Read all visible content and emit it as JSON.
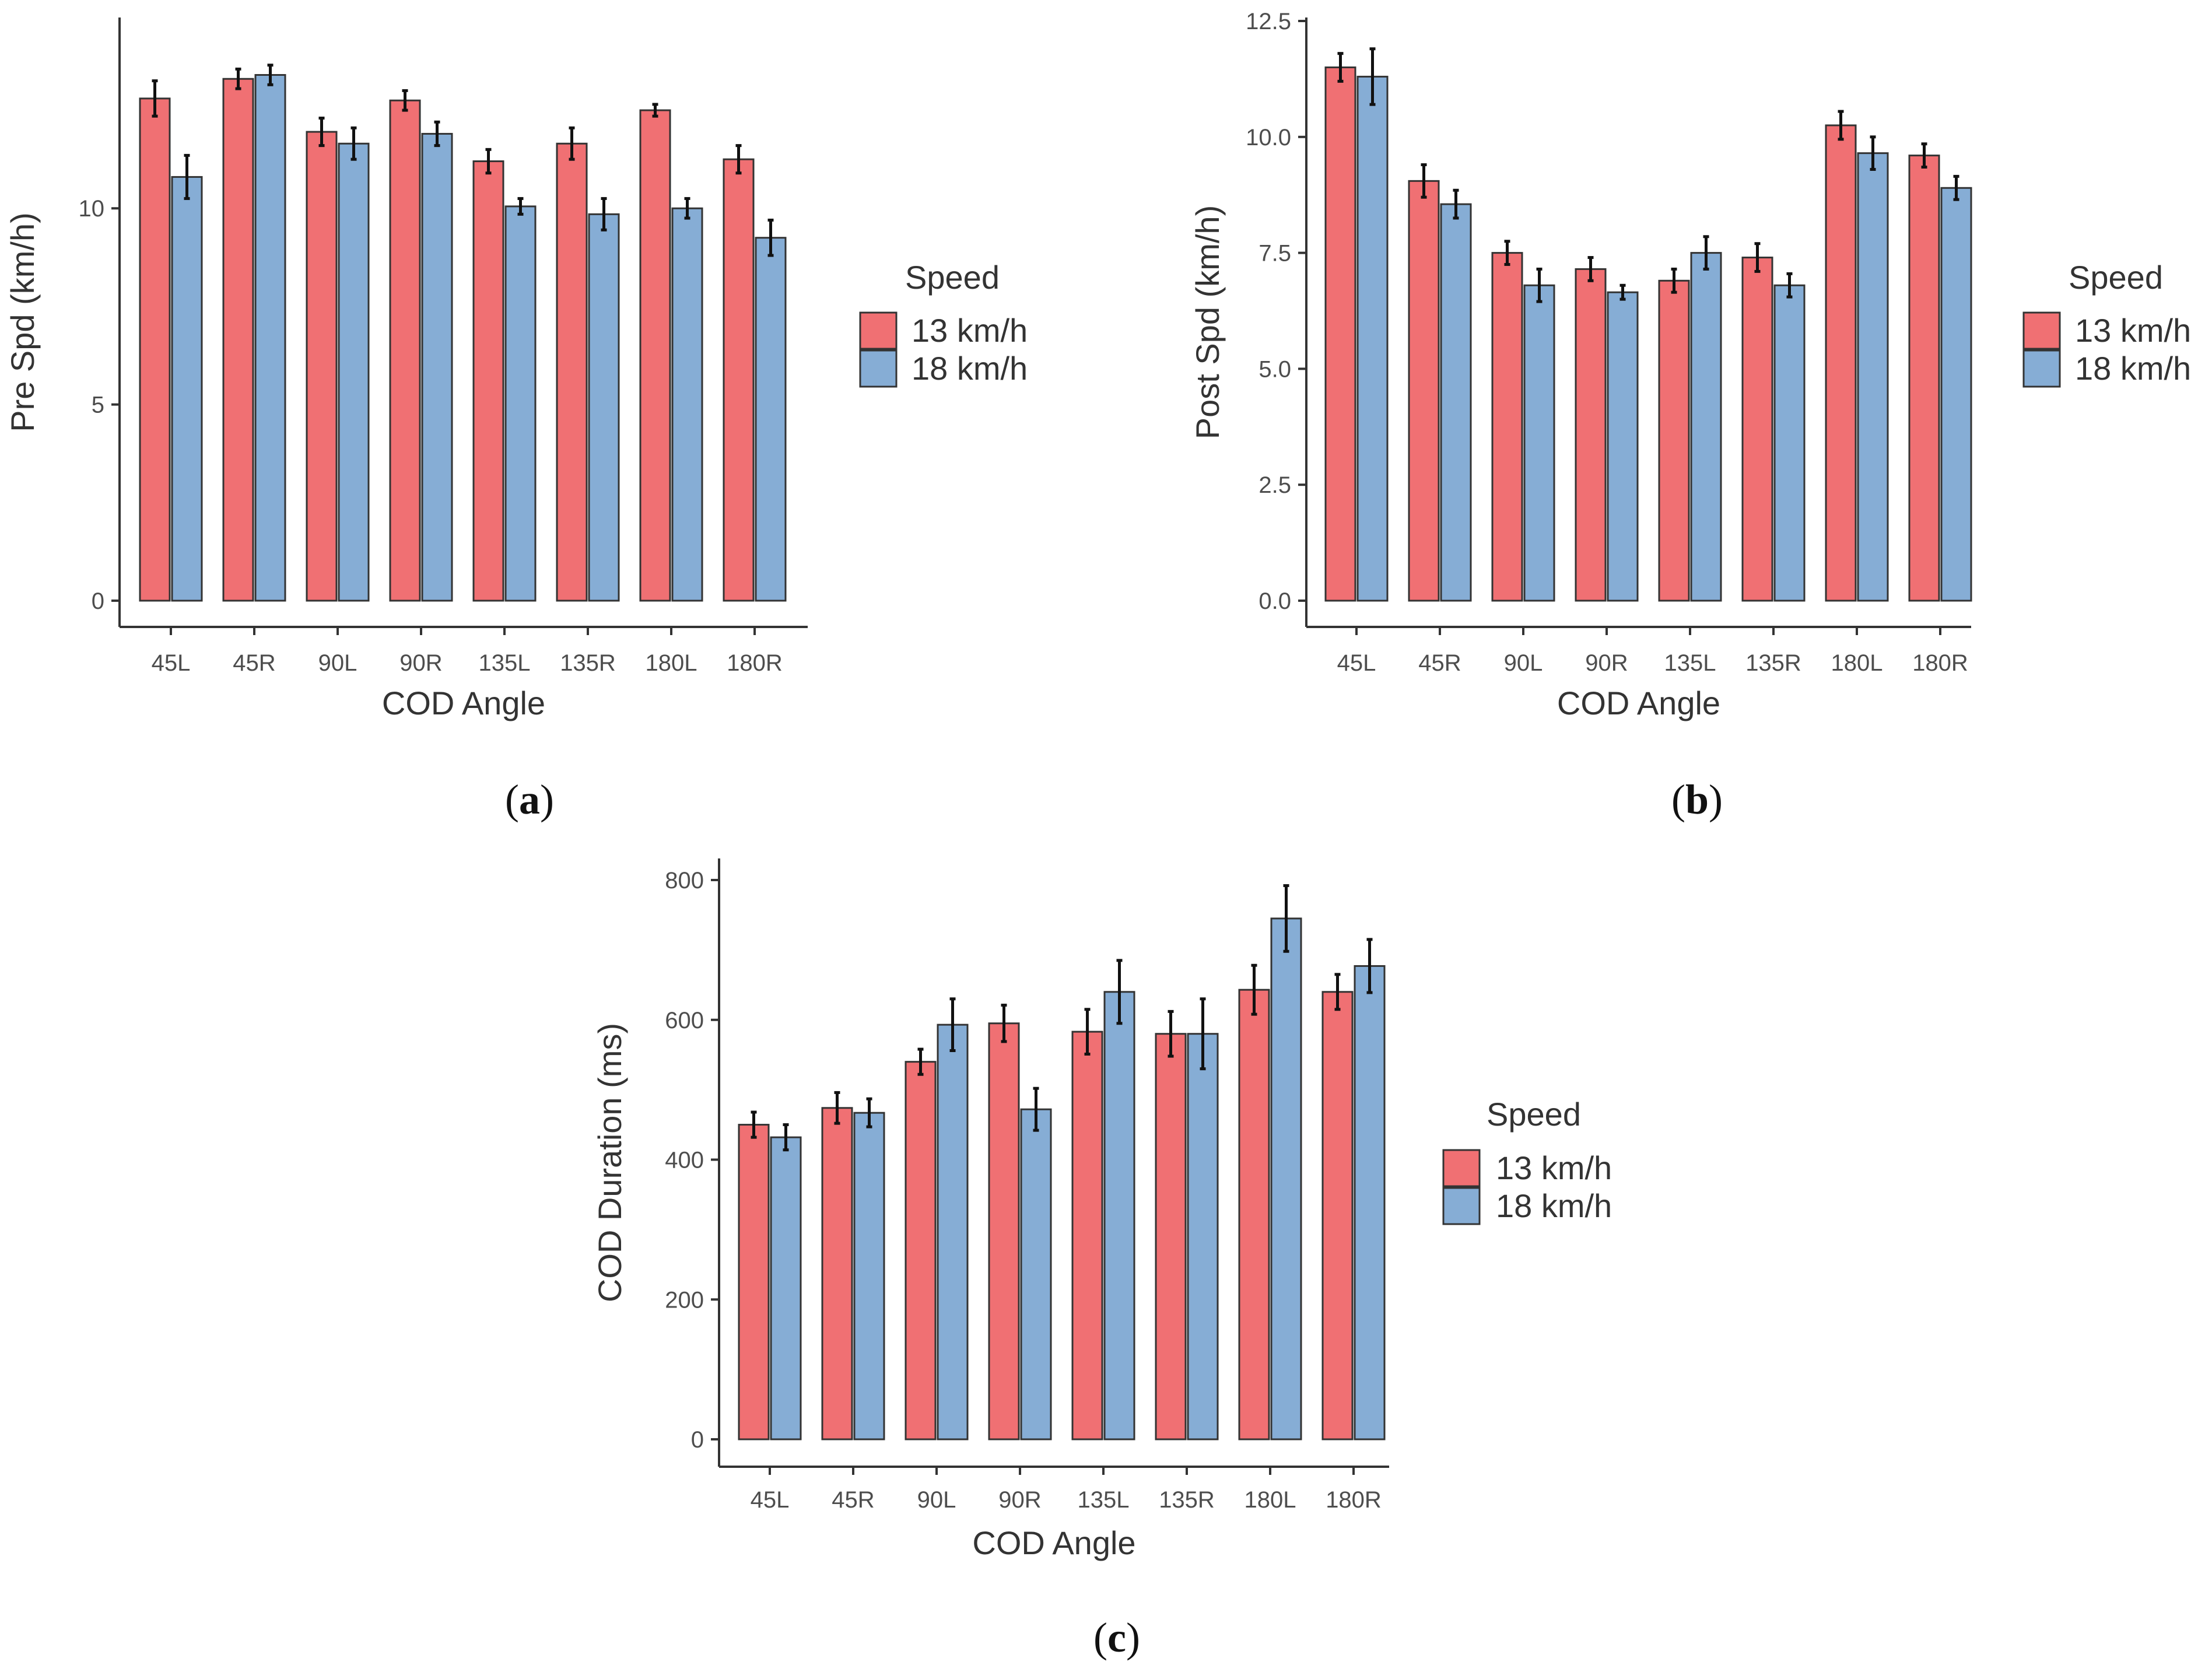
{
  "colors": {
    "s13": "#F07073",
    "s18": "#86ADD5"
  },
  "chart_data": [
    {
      "type": "bar",
      "panel_label_prefix": "(",
      "panel_label": "a",
      "panel_label_suffix": ")",
      "title": "",
      "xlabel": "COD Angle",
      "ylabel": "Pre Spd (km/h)",
      "ylim": [
        0,
        13.8
      ],
      "yticks": [
        0,
        5,
        10
      ],
      "ytick_labels": [
        "0",
        "5",
        "10"
      ],
      "categories": [
        "45L",
        "45R",
        "90L",
        "90R",
        "135L",
        "135R",
        "180L",
        "180R"
      ],
      "legend_title": "Speed",
      "legend_position": "right",
      "series": [
        {
          "name": "13 km/h",
          "values": [
            12.8,
            13.3,
            11.95,
            12.75,
            11.2,
            11.65,
            12.5,
            11.25
          ],
          "errors": [
            0.45,
            0.25,
            0.35,
            0.25,
            0.3,
            0.4,
            0.15,
            0.35
          ]
        },
        {
          "name": "18 km/h",
          "values": [
            10.8,
            13.4,
            11.65,
            11.9,
            10.05,
            9.85,
            10.0,
            9.25
          ],
          "errors": [
            0.55,
            0.25,
            0.4,
            0.3,
            0.2,
            0.4,
            0.25,
            0.45
          ]
        }
      ]
    },
    {
      "type": "bar",
      "panel_label_prefix": "(",
      "panel_label": "b",
      "panel_label_suffix": ")",
      "title": "",
      "xlabel": "COD Angle",
      "ylabel": "Post Spd (km/h)",
      "ylim": [
        0,
        12.5
      ],
      "yticks": [
        0,
        2.5,
        5,
        7.5,
        10,
        12.5
      ],
      "ytick_labels": [
        "0.0",
        "2.5",
        "5.0",
        "7.5",
        "10.0",
        "12.5"
      ],
      "categories": [
        "45L",
        "45R",
        "90L",
        "90R",
        "135L",
        "135R",
        "180L",
        "180R"
      ],
      "legend_title": "Speed",
      "legend_position": "right",
      "series": [
        {
          "name": "13 km/h",
          "values": [
            11.5,
            9.05,
            7.5,
            7.15,
            6.9,
            7.4,
            10.25,
            9.6
          ],
          "errors": [
            0.3,
            0.35,
            0.25,
            0.25,
            0.25,
            0.3,
            0.3,
            0.25
          ]
        },
        {
          "name": "18 km/h",
          "values": [
            11.3,
            8.55,
            6.8,
            6.65,
            7.5,
            6.8,
            9.65,
            8.9
          ],
          "errors": [
            0.6,
            0.3,
            0.35,
            0.15,
            0.35,
            0.25,
            0.35,
            0.25
          ]
        }
      ]
    },
    {
      "type": "bar",
      "panel_label_prefix": "(",
      "panel_label": "c",
      "panel_label_suffix": ")",
      "title": "",
      "xlabel": "COD Angle",
      "ylabel": "COD Duration (ms)",
      "ylim": [
        0,
        800
      ],
      "yticks": [
        0,
        200,
        400,
        600,
        800
      ],
      "ytick_labels": [
        "0",
        "200",
        "400",
        "600",
        "800"
      ],
      "categories": [
        "45L",
        "45R",
        "90L",
        "90R",
        "135L",
        "135R",
        "180L",
        "180R"
      ],
      "legend_title": "Speed",
      "legend_position": "right",
      "series": [
        {
          "name": "13 km/h",
          "values": [
            450,
            474,
            540,
            595,
            583,
            580,
            643,
            640
          ],
          "errors": [
            18,
            22,
            18,
            26,
            32,
            32,
            35,
            25
          ]
        },
        {
          "name": "18 km/h",
          "values": [
            432,
            467,
            593,
            472,
            640,
            580,
            745,
            677
          ],
          "errors": [
            18,
            20,
            37,
            30,
            45,
            50,
            47,
            38
          ]
        }
      ]
    }
  ]
}
